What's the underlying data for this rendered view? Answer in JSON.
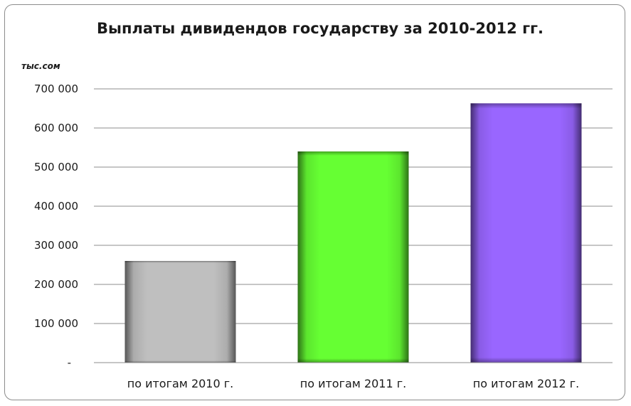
{
  "chart_data": {
    "type": "bar",
    "title": "Выплаты дивидендов государству за 2010-2012 гг.",
    "ylabel": "тыс.сом",
    "xlabel": "",
    "categories": [
      "по итогам 2010 г.",
      "по итогам 2011 г.",
      "по итогам 2012 г."
    ],
    "values": [
      260000,
      540000,
      663000
    ],
    "colors": [
      "#bfbfbf",
      "#66ff33",
      "#9966ff"
    ],
    "ylim": [
      0,
      700000
    ],
    "yticks": [
      {
        "value": 0,
        "label": "-"
      },
      {
        "value": 100000,
        "label": "100 000"
      },
      {
        "value": 200000,
        "label": "200 000"
      },
      {
        "value": 300000,
        "label": "300 000"
      },
      {
        "value": 400000,
        "label": "400 000"
      },
      {
        "value": 500000,
        "label": "500 000"
      },
      {
        "value": 600000,
        "label": "600 000"
      },
      {
        "value": 700000,
        "label": "700 000"
      }
    ],
    "grid": true,
    "legend": "none"
  }
}
